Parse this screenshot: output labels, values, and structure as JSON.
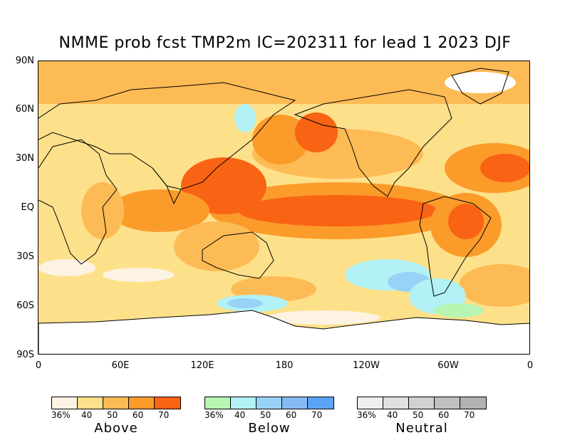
{
  "title": "NMME prob fcst TMP2m IC=202311 for lead 1 2023 DJF",
  "y_axis_labels": [
    "90N",
    "60N",
    "30N",
    "EQ",
    "30S",
    "60S",
    "90S"
  ],
  "x_axis_labels": [
    "0",
    "60E",
    "120E",
    "180",
    "120W",
    "60W",
    "0"
  ],
  "legends": [
    {
      "name": "Above",
      "colors": [
        "#fdf3e3",
        "#fde08a",
        "#fdbb55",
        "#fb9b2a",
        "#f96314"
      ],
      "ticks": [
        "36%",
        "40",
        "50",
        "60",
        "70"
      ]
    },
    {
      "name": "Below",
      "colors": [
        "#b6f5b2",
        "#b2f1f5",
        "#98d2f6",
        "#86baf4",
        "#5ba4f5"
      ],
      "ticks": [
        "36%",
        "40",
        "50",
        "60",
        "70"
      ]
    },
    {
      "name": "Neutral",
      "colors": [
        "#efefef",
        "#e0e0e0",
        "#d1d1d1",
        "#c0c0c0",
        "#b2b2b2"
      ],
      "ticks": [
        "36%",
        "40",
        "50",
        "60",
        "70"
      ]
    }
  ]
}
